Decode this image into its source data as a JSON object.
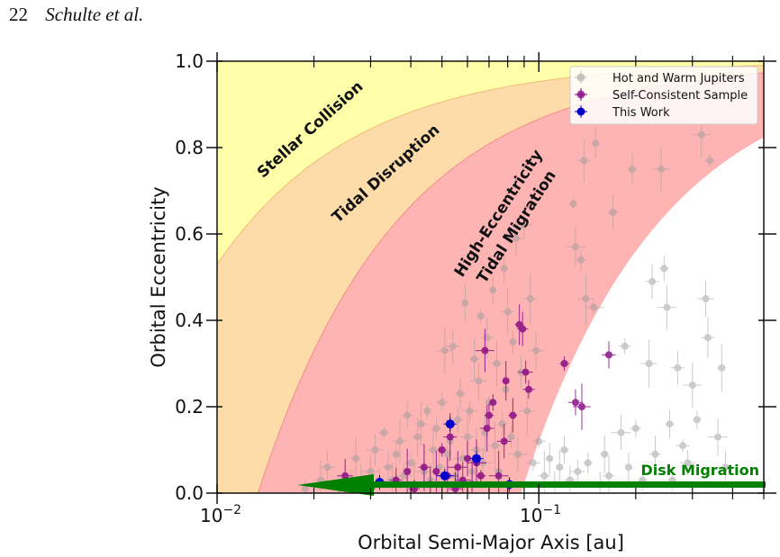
{
  "header": {
    "page_number": "22",
    "authors": "Schulte et al."
  },
  "chart_data": {
    "type": "scatter",
    "xlabel": "Orbital Semi-Major Axis [au]",
    "ylabel": "Orbital Eccentricity",
    "xscale": "log",
    "xlim": [
      0.01,
      0.5
    ],
    "ylim": [
      0.0,
      1.0
    ],
    "x_ticks": [
      {
        "value": 0.01,
        "base": "10",
        "exp": "−2"
      },
      {
        "value": 0.1,
        "base": "10",
        "exp": "−1"
      }
    ],
    "y_ticks": [
      "0.0",
      "0.2",
      "0.4",
      "0.6",
      "0.8",
      "1.0"
    ],
    "legend": {
      "position": "top-right",
      "entries": [
        {
          "label": "Hot and Warm Jupiters",
          "color": "#999999"
        },
        {
          "label": "Self-Consistent Sample",
          "color": "#800080"
        },
        {
          "label": "This Work",
          "color": "#0000cc"
        }
      ]
    },
    "regions": [
      {
        "label": "Stellar Collision",
        "color": "#ffffaa"
      },
      {
        "label": "Tidal Disruption",
        "color": "#fddcaa"
      },
      {
        "label": "High-Eccentricity",
        "label2": "Tidal Migration",
        "color": "#ffb4b4"
      },
      {
        "label": "Disk Migration",
        "color": "#008000"
      }
    ],
    "region_boundaries": {
      "collision_a_e0": 0.0047,
      "disruption_a_e0": 0.0134,
      "migration_a_e0": 0.088
    },
    "series": [
      {
        "name": "Hot and Warm Jupiters",
        "color": "#999999",
        "points": [
          [
            0.0188,
            0.01
          ],
          [
            0.021,
            0.03
          ],
          [
            0.022,
            0.06
          ],
          [
            0.024,
            0.01
          ],
          [
            0.026,
            0.03
          ],
          [
            0.027,
            0.08
          ],
          [
            0.028,
            0.02
          ],
          [
            0.03,
            0.05
          ],
          [
            0.031,
            0.1
          ],
          [
            0.032,
            0.02
          ],
          [
            0.033,
            0.14
          ],
          [
            0.034,
            0.06
          ],
          [
            0.035,
            0.03
          ],
          [
            0.036,
            0.09
          ],
          [
            0.037,
            0.12
          ],
          [
            0.038,
            0.04
          ],
          [
            0.039,
            0.18
          ],
          [
            0.04,
            0.07
          ],
          [
            0.041,
            0.02
          ],
          [
            0.042,
            0.13
          ],
          [
            0.043,
            0.16
          ],
          [
            0.044,
            0.05
          ],
          [
            0.045,
            0.19
          ],
          [
            0.046,
            0.03
          ],
          [
            0.047,
            0.1
          ],
          [
            0.048,
            0.15
          ],
          [
            0.049,
            0.06
          ],
          [
            0.05,
            0.21
          ],
          [
            0.051,
            0.33
          ],
          [
            0.052,
            0.09
          ],
          [
            0.053,
            0.12
          ],
          [
            0.054,
            0.34
          ],
          [
            0.055,
            0.04
          ],
          [
            0.056,
            0.17
          ],
          [
            0.057,
            0.23
          ],
          [
            0.058,
            0.08
          ],
          [
            0.059,
            0.44
          ],
          [
            0.06,
            0.13
          ],
          [
            0.061,
            0.19
          ],
          [
            0.062,
            0.05
          ],
          [
            0.063,
            0.31
          ],
          [
            0.064,
            0.1
          ],
          [
            0.065,
            0.26
          ],
          [
            0.066,
            0.41
          ],
          [
            0.067,
            0.07
          ],
          [
            0.068,
            0.14
          ],
          [
            0.069,
            0.36
          ],
          [
            0.07,
            0.21
          ],
          [
            0.072,
            0.47
          ],
          [
            0.073,
            0.11
          ],
          [
            0.074,
            0.3
          ],
          [
            0.075,
            0.05
          ],
          [
            0.077,
            0.16
          ],
          [
            0.078,
            0.52
          ],
          [
            0.079,
            0.24
          ],
          [
            0.08,
            0.42
          ],
          [
            0.082,
            0.13
          ],
          [
            0.083,
            0.35
          ],
          [
            0.085,
            0.59
          ],
          [
            0.086,
            0.09
          ],
          [
            0.088,
            0.28
          ],
          [
            0.09,
            0.62
          ],
          [
            0.092,
            0.19
          ],
          [
            0.094,
            0.45
          ],
          [
            0.096,
            0.07
          ],
          [
            0.098,
            0.33
          ],
          [
            0.1,
            0.12
          ],
          [
            0.104,
            0.04
          ],
          [
            0.108,
            0.08
          ],
          [
            0.112,
            0.02
          ],
          [
            0.116,
            0.06
          ],
          [
            0.12,
            0.1
          ],
          [
            0.125,
            0.03
          ],
          [
            0.128,
            0.67
          ],
          [
            0.13,
            0.57
          ],
          [
            0.132,
            0.05
          ],
          [
            0.135,
            0.54
          ],
          [
            0.138,
            0.77
          ],
          [
            0.14,
            0.45
          ],
          [
            0.142,
            0.07
          ],
          [
            0.148,
            0.43
          ],
          [
            0.15,
            0.81
          ],
          [
            0.155,
            0.02
          ],
          [
            0.16,
            0.09
          ],
          [
            0.165,
            0.04
          ],
          [
            0.17,
            0.65
          ],
          [
            0.18,
            0.14
          ],
          [
            0.185,
            0.34
          ],
          [
            0.19,
            0.06
          ],
          [
            0.195,
            0.75
          ],
          [
            0.2,
            0.15
          ],
          [
            0.21,
            0.03
          ],
          [
            0.22,
            0.3
          ],
          [
            0.225,
            0.49
          ],
          [
            0.23,
            0.09
          ],
          [
            0.24,
            0.75
          ],
          [
            0.245,
            0.52
          ],
          [
            0.25,
            0.43
          ],
          [
            0.255,
            0.16
          ],
          [
            0.26,
            0.03
          ],
          [
            0.27,
            0.29
          ],
          [
            0.28,
            0.11
          ],
          [
            0.29,
            0.07
          ],
          [
            0.3,
            0.25
          ],
          [
            0.31,
            0.17
          ],
          [
            0.32,
            0.83
          ],
          [
            0.33,
            0.45
          ],
          [
            0.335,
            0.36
          ],
          [
            0.34,
            0.77
          ],
          [
            0.36,
            0.13
          ],
          [
            0.37,
            0.29
          ],
          [
            0.38,
            0.06
          ]
        ]
      },
      {
        "name": "Self-Consistent Sample",
        "color": "#800080",
        "points": [
          [
            0.025,
            0.04
          ],
          [
            0.03,
            0.01
          ],
          [
            0.036,
            0.03
          ],
          [
            0.039,
            0.05
          ],
          [
            0.041,
            0.01
          ],
          [
            0.044,
            0.06
          ],
          [
            0.046,
            0.02
          ],
          [
            0.048,
            0.05
          ],
          [
            0.05,
            0.1
          ],
          [
            0.052,
            0.04
          ],
          [
            0.053,
            0.13
          ],
          [
            0.055,
            0.01
          ],
          [
            0.056,
            0.06
          ],
          [
            0.058,
            0.03
          ],
          [
            0.06,
            0.08
          ],
          [
            0.062,
            0.02
          ],
          [
            0.064,
            0.07
          ],
          [
            0.066,
            0.04
          ],
          [
            0.068,
            0.33
          ],
          [
            0.069,
            0.15
          ],
          [
            0.07,
            0.18
          ],
          [
            0.072,
            0.21
          ],
          [
            0.075,
            0.04
          ],
          [
            0.078,
            0.12
          ],
          [
            0.079,
            0.26
          ],
          [
            0.083,
            0.18
          ],
          [
            0.087,
            0.39
          ],
          [
            0.089,
            0.38
          ],
          [
            0.091,
            0.28
          ],
          [
            0.093,
            0.24
          ],
          [
            0.12,
            0.3
          ],
          [
            0.13,
            0.21
          ],
          [
            0.136,
            0.2
          ],
          [
            0.165,
            0.32
          ]
        ]
      },
      {
        "name": "This Work",
        "color": "#0000cc",
        "points": [
          [
            0.032,
            0.025
          ],
          [
            0.051,
            0.04
          ],
          [
            0.053,
            0.16
          ],
          [
            0.064,
            0.08
          ],
          [
            0.081,
            0.02
          ]
        ]
      }
    ]
  }
}
